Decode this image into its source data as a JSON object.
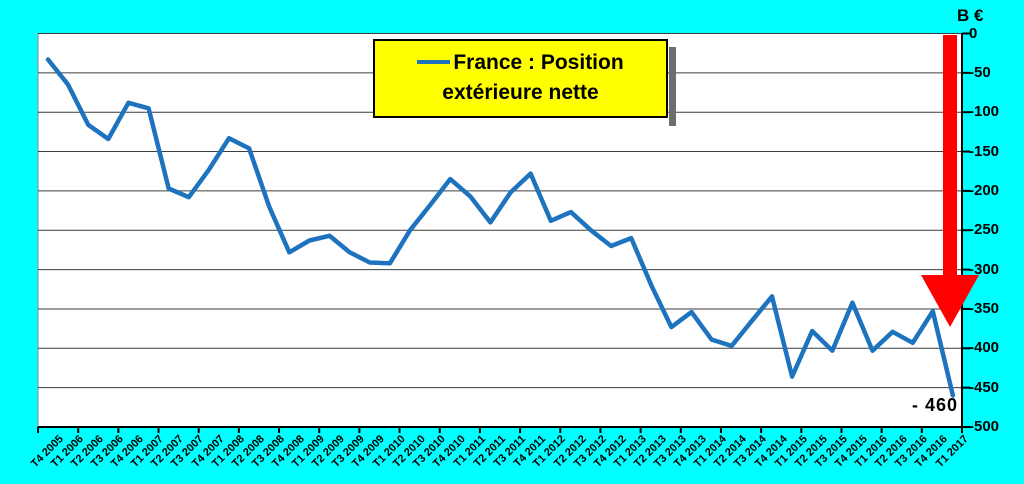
{
  "colors": {
    "background": "#00FFFF",
    "plot_bg": "#FFFFFF",
    "plot_border": "#8a8a8a",
    "grid": "#3d3d3d",
    "axis": "#000000",
    "line": "#1E73BE",
    "arrow": "#FF0000",
    "legend_bg": "#FFFF00",
    "legend_border": "#000000",
    "legend_shadow": "#6e6e6e",
    "text": "#000000"
  },
  "legend": {
    "series_label": "France : Position extérieure nette",
    "line1": "France : Position",
    "line2": "extérieure nette"
  },
  "axis": {
    "unit_label": "B €",
    "y_ticks": [
      0,
      -50,
      -100,
      -150,
      -200,
      -250,
      -300,
      -350,
      -400,
      -450,
      -500
    ]
  },
  "annotation": {
    "last_value_label": "- 460",
    "arrow": "red-down-arrow"
  },
  "chart_data": {
    "type": "line",
    "title": "France : Position extérieure nette",
    "ylabel": "B €",
    "ylim": [
      -500,
      0
    ],
    "grid": true,
    "legend_position": "top-center",
    "line_color": "#1E73BE",
    "categories": [
      "T4 2005",
      "T1 2006",
      "T2 2006",
      "T3 2006",
      "T4 2006",
      "T1 2007",
      "T2 2007",
      "T3 2007",
      "T4 2007",
      "T1 2008",
      "T2 2008",
      "T3 2008",
      "T4 2008",
      "T1 2009",
      "T2 2009",
      "T3 2009",
      "T4 2009",
      "T1 2010",
      "T2 2010",
      "T3 2010",
      "T4 2010",
      "T1 2011",
      "T2 2011",
      "T3 2011",
      "T4 2011",
      "T1 2012",
      "T2 2012",
      "T3 2012",
      "T4 2012",
      "T1 2013",
      "T2 2013",
      "T3 2013",
      "T4 2013",
      "T1 2014",
      "T2 2014",
      "T3 2014",
      "T4 2014",
      "T1 2015",
      "T2 2015",
      "T3 2015",
      "T4 2015",
      "T1 2016",
      "T2 2016",
      "T3 2016",
      "T4 2016",
      "T1 2017"
    ],
    "values": [
      -33,
      -65,
      -116,
      -134,
      -88,
      -95,
      -197,
      -208,
      -173,
      -133,
      -146,
      -220,
      -278,
      -263,
      -257,
      -278,
      -291,
      -292,
      -250,
      -218,
      -185,
      -207,
      -240,
      -202,
      -178,
      -238,
      -227,
      -250,
      -270,
      -260,
      -320,
      -373,
      -354,
      -389,
      -397,
      -365,
      -334,
      -436,
      -378,
      -403,
      -342,
      -403,
      -379,
      -393,
      -353,
      -460
    ]
  }
}
